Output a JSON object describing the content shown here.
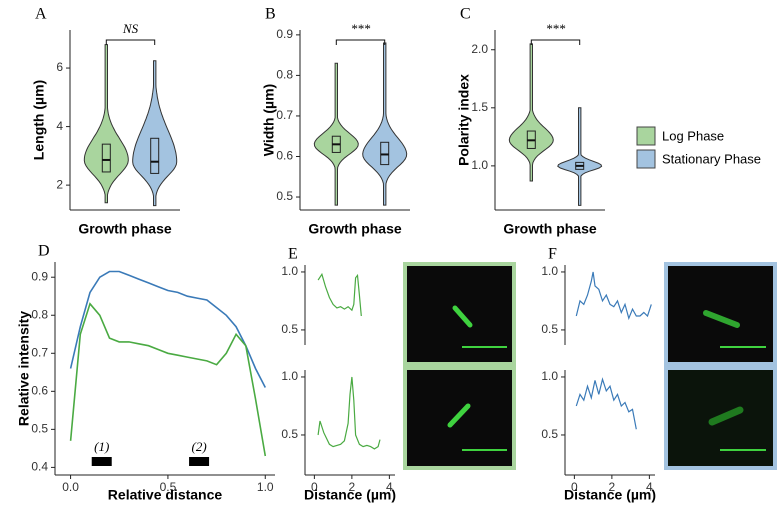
{
  "legend": {
    "items": [
      {
        "name": "Log Phase",
        "color": "#a9d59e"
      },
      {
        "name": "Stationary Phase",
        "color": "#a3c3e0"
      }
    ]
  },
  "chart_data": [
    {
      "type": "violin",
      "panel": "A",
      "ylabel": "Length (µm)",
      "xlabel": "Growth phase",
      "annotation": "NS",
      "ylim": [
        1.15,
        7.3
      ],
      "yticks": [
        2,
        4,
        6
      ],
      "series": [
        {
          "color": "#a9d59e",
          "stats": {
            "min": 1.4,
            "q1": 2.45,
            "median": 2.86,
            "q3": 3.4,
            "max": 6.8
          }
        },
        {
          "color": "#a3c3e0",
          "stats": {
            "min": 1.3,
            "q1": 2.4,
            "median": 2.8,
            "q3": 3.6,
            "max": 6.25
          }
        }
      ]
    },
    {
      "type": "violin",
      "panel": "B",
      "ylabel": "Width (µm)",
      "xlabel": "Growth phase",
      "annotation": "***",
      "ylim": [
        0.468,
        0.912
      ],
      "yticks": [
        0.5,
        0.6,
        0.7,
        0.8,
        0.9
      ],
      "series": [
        {
          "color": "#a9d59e",
          "stats": {
            "min": 0.48,
            "q1": 0.61,
            "median": 0.63,
            "q3": 0.65,
            "max": 0.83
          }
        },
        {
          "color": "#a3c3e0",
          "stats": {
            "min": 0.48,
            "q1": 0.58,
            "median": 0.605,
            "q3": 0.635,
            "max": 0.88
          }
        }
      ]
    },
    {
      "type": "violin",
      "panel": "C",
      "ylabel": "Polarity index",
      "xlabel": "Growth phase",
      "annotation": "***",
      "ylim": [
        0.62,
        2.17
      ],
      "yticks": [
        {
          "value": 1,
          "label": "1.0"
        },
        1.5,
        {
          "value": 2,
          "label": "2.0"
        }
      ],
      "series": [
        {
          "color": "#a9d59e",
          "stats": {
            "min": 0.87,
            "q1": 1.15,
            "median": 1.22,
            "q3": 1.3,
            "max": 2.05
          }
        },
        {
          "color": "#a3c3e0",
          "stats": {
            "min": 0.66,
            "q1": 0.97,
            "median": 1.0,
            "q3": 1.03,
            "max": 1.5
          }
        }
      ]
    },
    {
      "type": "line",
      "panel": "D",
      "ylabel": "Relative intensity",
      "xlabel": "Relative distance",
      "xlim": [
        -0.08,
        1.05
      ],
      "xticks": [
        {
          "value": 0,
          "label": "0.0"
        },
        0.5,
        {
          "value": 1,
          "label": "1.0"
        }
      ],
      "ylim": [
        0.38,
        0.94
      ],
      "yticks": [
        0.4,
        0.5,
        0.6,
        0.7,
        0.8,
        0.9
      ],
      "annotations": [
        {
          "text": "(1)",
          "x": 0.16
        },
        {
          "text": "(2)",
          "x": 0.66
        }
      ],
      "x": [
        0,
        0.05,
        0.1,
        0.15,
        0.2,
        0.25,
        0.3,
        0.35,
        0.4,
        0.45,
        0.5,
        0.55,
        0.6,
        0.65,
        0.7,
        0.75,
        0.8,
        0.85,
        0.9,
        0.95,
        1.0
      ],
      "series": [
        {
          "color": "#3a7ab8",
          "values": [
            0.66,
            0.77,
            0.86,
            0.9,
            0.915,
            0.915,
            0.905,
            0.895,
            0.885,
            0.875,
            0.865,
            0.86,
            0.85,
            0.845,
            0.84,
            0.82,
            0.8,
            0.77,
            0.72,
            0.66,
            0.61
          ]
        },
        {
          "color": "#4aaa42",
          "values": [
            0.47,
            0.75,
            0.83,
            0.8,
            0.74,
            0.73,
            0.73,
            0.725,
            0.72,
            0.71,
            0.7,
            0.695,
            0.69,
            0.685,
            0.68,
            0.67,
            0.7,
            0.75,
            0.72,
            0.58,
            0.43
          ]
        }
      ]
    },
    {
      "type": "line",
      "panel": "E",
      "xlim": [
        -0.5,
        4.3
      ],
      "ylim": [
        0.37,
        1.06
      ],
      "yticks": [
        0.5,
        {
          "value": 1,
          "label": "1.0"
        }
      ],
      "x": [
        0.2,
        0.4,
        0.6,
        0.8,
        1.0,
        1.2,
        1.4,
        1.6,
        1.8,
        2.0,
        2.1,
        2.2,
        2.3,
        2.4,
        2.5
      ],
      "series": [
        {
          "color": "#4aaa42",
          "values": [
            0.93,
            0.98,
            0.87,
            0.78,
            0.72,
            0.69,
            0.7,
            0.68,
            0.7,
            0.67,
            0.72,
            0.95,
            0.97,
            0.8,
            0.62
          ]
        }
      ]
    },
    {
      "type": "line",
      "xlabel": "Distance (µm)",
      "xlim": [
        -0.5,
        4.3
      ],
      "xticks": [
        0,
        2,
        4
      ],
      "ylim": [
        0.155,
        1.06
      ],
      "yticks": [
        0.5,
        {
          "value": 1,
          "label": "1.0"
        }
      ],
      "x": [
        0.2,
        0.3,
        0.5,
        0.8,
        1.0,
        1.2,
        1.4,
        1.6,
        1.8,
        1.9,
        2.0,
        2.1,
        2.2,
        2.4,
        2.6,
        2.8,
        3.0,
        3.2,
        3.4,
        3.5
      ],
      "series": [
        {
          "color": "#4aaa42",
          "values": [
            0.5,
            0.62,
            0.52,
            0.42,
            0.4,
            0.41,
            0.42,
            0.45,
            0.6,
            0.85,
            1.0,
            0.8,
            0.5,
            0.42,
            0.4,
            0.41,
            0.4,
            0.38,
            0.4,
            0.46
          ]
        }
      ]
    },
    {
      "type": "line",
      "panel": "F",
      "xlim": [
        -0.5,
        4.3
      ],
      "ylim": [
        0.37,
        1.06
      ],
      "yticks": [
        0.5,
        {
          "value": 1,
          "label": "1.0"
        }
      ],
      "x": [
        0.1,
        0.3,
        0.5,
        0.7,
        0.9,
        1.0,
        1.1,
        1.3,
        1.5,
        1.7,
        1.9,
        2.1,
        2.3,
        2.5,
        2.7,
        2.9,
        3.1,
        3.3,
        3.5,
        3.7,
        3.9,
        4.1
      ],
      "series": [
        {
          "color": "#3a7ab8",
          "values": [
            0.62,
            0.75,
            0.72,
            0.8,
            0.92,
            1.0,
            0.88,
            0.85,
            0.75,
            0.8,
            0.72,
            0.7,
            0.75,
            0.65,
            0.72,
            0.6,
            0.68,
            0.62,
            0.62,
            0.65,
            0.62,
            0.72
          ]
        }
      ]
    },
    {
      "type": "line",
      "xlabel": "Distance (µm)",
      "xlim": [
        -0.5,
        4.3
      ],
      "xticks": [
        0,
        2,
        4
      ],
      "ylim": [
        0.155,
        1.06
      ],
      "yticks": [
        0.5,
        {
          "value": 1,
          "label": "1.0"
        }
      ],
      "x": [
        0.1,
        0.3,
        0.5,
        0.7,
        0.9,
        1.1,
        1.3,
        1.5,
        1.7,
        1.9,
        2.1,
        2.3,
        2.5,
        2.7,
        2.9,
        3.1,
        3.3
      ],
      "series": [
        {
          "color": "#3a7ab8",
          "values": [
            0.75,
            0.85,
            0.8,
            0.92,
            0.82,
            0.97,
            0.85,
            0.98,
            0.88,
            0.92,
            0.8,
            0.85,
            0.75,
            0.78,
            0.7,
            0.72,
            0.55
          ]
        }
      ]
    }
  ]
}
